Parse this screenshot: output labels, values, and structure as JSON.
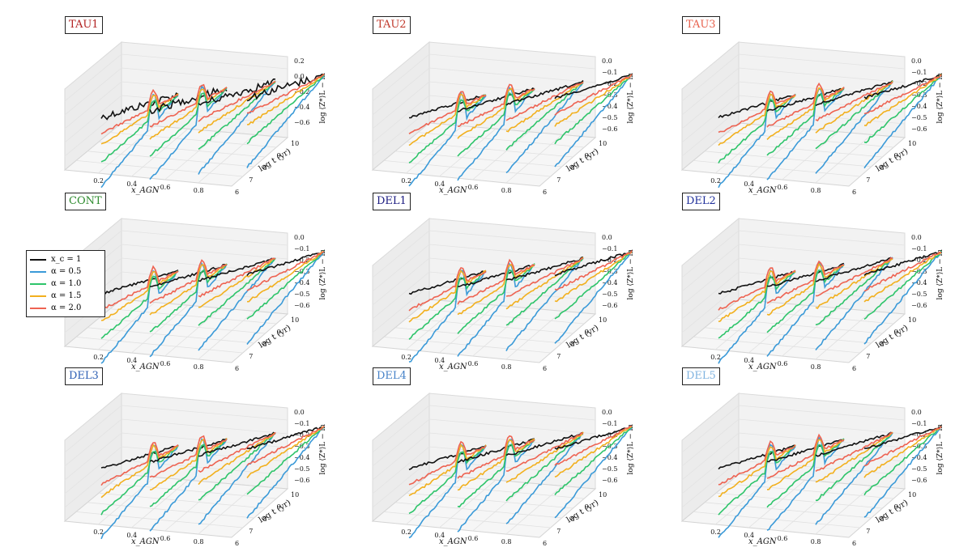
{
  "figure": {
    "panels": [
      {
        "title": "TAU1",
        "title_color": "#b22222"
      },
      {
        "title": "TAU2",
        "title_color": "#c0392b"
      },
      {
        "title": "TAU3",
        "title_color": "#e8604c"
      },
      {
        "title": "CONT",
        "title_color": "#2e8b2e"
      },
      {
        "title": "DEL1",
        "title_color": "#1a1a80"
      },
      {
        "title": "DEL2",
        "title_color": "#1f2f9a"
      },
      {
        "title": "DEL3",
        "title_color": "#2d5fb4"
      },
      {
        "title": "DEL4",
        "title_color": "#4682c8"
      },
      {
        "title": "DEL5",
        "title_color": "#7fb3e0"
      }
    ],
    "legend": {
      "entries": [
        {
          "label": "x_c = 1",
          "color": "#111111"
        },
        {
          "label": "α = 0.5",
          "color": "#3b9ad8"
        },
        {
          "label": "α = 1.0",
          "color": "#2ec46a"
        },
        {
          "label": "α = 1.5",
          "color": "#f2b01e"
        },
        {
          "label": "α = 2.0",
          "color": "#ee6352"
        }
      ]
    },
    "axes": {
      "x_label": "x_AGN",
      "x_ticks": [
        "0.2",
        "0.4",
        "0.6",
        "0.8"
      ],
      "y_label": "log t (yr)",
      "y_ticks": [
        "6",
        "7",
        "8",
        "9",
        "10"
      ],
      "z_label": "log ⟨Z*⟩L − m",
      "z_ticks_tau1": [
        "0.2",
        "0.0",
        "−0.2",
        "−0.4",
        "−0.6"
      ],
      "z_ticks": [
        "0.0",
        "−0.1",
        "−0.2",
        "−0.3",
        "−0.4",
        "−0.5",
        "−0.6"
      ]
    }
  },
  "chart_data": {
    "type": "line",
    "x_values": [
      0.1,
      0.25,
      0.5,
      0.75
    ],
    "y_range": [
      6,
      10
    ],
    "series": [
      {
        "name": "x_c = 1",
        "color": "#111111"
      },
      {
        "name": "α = 0.5",
        "color": "#3b9ad8"
      },
      {
        "name": "α = 1.0",
        "color": "#2ec46a"
      },
      {
        "name": "α = 1.5",
        "color": "#f2b01e"
      },
      {
        "name": "α = 2.0",
        "color": "#ee6352"
      }
    ]
  }
}
